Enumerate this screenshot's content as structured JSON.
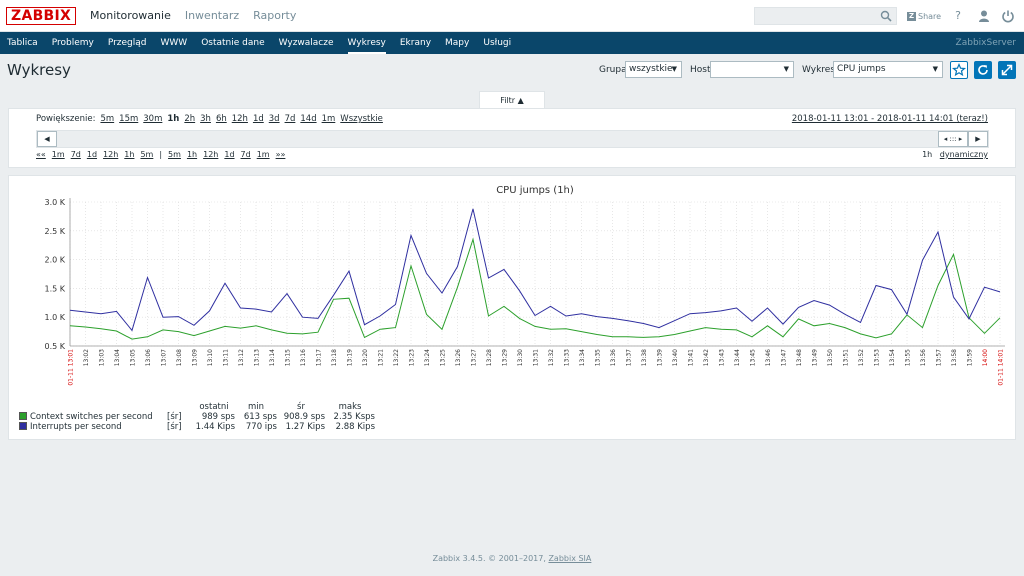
{
  "logo": "ZABBIX",
  "main_menu": [
    {
      "label": "Monitorowanie",
      "active": true
    },
    {
      "label": "Inwentarz",
      "active": false
    },
    {
      "label": "Raporty",
      "active": false
    }
  ],
  "top": {
    "share_label": "Share",
    "help_icon": "?"
  },
  "sub_menu": [
    {
      "label": "Tablica",
      "active": false
    },
    {
      "label": "Problemy",
      "active": false
    },
    {
      "label": "Przegląd",
      "active": false
    },
    {
      "label": "WWW",
      "active": false
    },
    {
      "label": "Ostatnie dane",
      "active": false
    },
    {
      "label": "Wyzwalacze",
      "active": false
    },
    {
      "label": "Wykresy",
      "active": true
    },
    {
      "label": "Ekrany",
      "active": false
    },
    {
      "label": "Mapy",
      "active": false
    },
    {
      "label": "Usługi",
      "active": false
    }
  ],
  "server_name": "ZabbixServer",
  "header": {
    "title": "Wykresy",
    "group_label": "Grupa",
    "group_value": "wszystkie",
    "host_label": "Host",
    "host_value": "",
    "graph_label": "Wykres",
    "graph_value": "CPU jumps"
  },
  "filter": {
    "label": "Filtr",
    "arrow": "▲"
  },
  "zoom": {
    "label": "Powiększenie:",
    "options": [
      "5m",
      "15m",
      "30m",
      "1h",
      "2h",
      "3h",
      "6h",
      "12h",
      "1d",
      "3d",
      "7d",
      "14d",
      "1m",
      "Wszystkie"
    ],
    "current": "1h"
  },
  "period_text": "2018-01-11 13:01 - 2018-01-11 14:01 (teraz!)",
  "navigation": {
    "left_items": [
      "««",
      "1m",
      "7d",
      "1d",
      "12h",
      "1h",
      "5m",
      "|",
      "5m",
      "1h",
      "12h",
      "1d",
      "7d",
      "1m",
      "»»"
    ],
    "right_period": "1h",
    "right_link": "dynamiczny"
  },
  "chart_data": {
    "type": "line",
    "title": "CPU jumps (1h)",
    "yticks": [
      "3.0 K",
      "2.5 K",
      "2.0 K",
      "1.5 K",
      "1.0 K",
      "0.5 K"
    ],
    "ylim": [
      500,
      3000
    ],
    "x": [
      "13:01",
      "13:02",
      "13:03",
      "13:04",
      "13:05",
      "13:06",
      "13:07",
      "13:08",
      "13:09",
      "13:10",
      "13:11",
      "13:12",
      "13:13",
      "13:14",
      "13:15",
      "13:16",
      "13:17",
      "13:18",
      "13:19",
      "13:20",
      "13:21",
      "13:22",
      "13:23",
      "13:24",
      "13:25",
      "13:26",
      "13:27",
      "13:28",
      "13:29",
      "13:30",
      "13:31",
      "13:32",
      "13:33",
      "13:34",
      "13:35",
      "13:36",
      "13:37",
      "13:38",
      "13:39",
      "13:40",
      "13:41",
      "13:42",
      "13:43",
      "13:44",
      "13:45",
      "13:46",
      "13:47",
      "13:48",
      "13:49",
      "13:50",
      "13:51",
      "13:52",
      "13:53",
      "13:54",
      "13:55",
      "13:56",
      "13:57",
      "13:58",
      "13:59",
      "14:00",
      "14:01"
    ],
    "x_edge_labels": [
      "01-11 13:01",
      "14:00",
      "01-11 14:01"
    ],
    "grid": true,
    "series": [
      {
        "name": "Context switches per second",
        "color": "#2ca02c",
        "values": [
          850,
          830,
          800,
          760,
          620,
          660,
          780,
          750,
          680,
          760,
          840,
          810,
          850,
          780,
          720,
          710,
          740,
          1310,
          1330,
          650,
          790,
          820,
          1890,
          1050,
          790,
          1520,
          2350,
          1020,
          1190,
          980,
          840,
          790,
          800,
          750,
          700,
          660,
          660,
          650,
          660,
          700,
          760,
          820,
          790,
          780,
          660,
          850,
          660,
          970,
          850,
          890,
          820,
          710,
          640,
          710,
          1040,
          820,
          1550,
          2090,
          990,
          720,
          989
        ]
      },
      {
        "name": "Interrupts per second",
        "color": "#2f2fa0",
        "values": [
          1120,
          1090,
          1060,
          1100,
          770,
          1690,
          1000,
          1010,
          860,
          1110,
          1590,
          1160,
          1140,
          1090,
          1410,
          1000,
          980,
          1380,
          1800,
          870,
          1020,
          1220,
          2420,
          1760,
          1420,
          1880,
          2880,
          1680,
          1830,
          1460,
          1030,
          1190,
          1020,
          1060,
          1010,
          980,
          940,
          890,
          820,
          940,
          1060,
          1080,
          1110,
          1160,
          930,
          1160,
          880,
          1170,
          1290,
          1210,
          1050,
          910,
          1550,
          1480,
          1050,
          1990,
          2480,
          1350,
          970,
          1520,
          1440
        ]
      }
    ],
    "legend_headers": [
      "ostatni",
      "min",
      "śr",
      "maks"
    ],
    "legend_rows": [
      {
        "name": "Context switches per second",
        "agg": "[śr]",
        "last": "989 sps",
        "min": "613 sps",
        "avg": "908.9 sps",
        "max": "2.35 Ksps",
        "color": "#2ca02c"
      },
      {
        "name": "Interrupts per second",
        "agg": "[śr]",
        "last": "1.44 Kips",
        "min": "770 ips",
        "avg": "1.27 Kips",
        "max": "2.88 Kips",
        "color": "#2f2fa0"
      }
    ]
  },
  "footer": {
    "text": "Zabbix 3.4.5. © 2001–2017,",
    "link": "Zabbix SIA"
  }
}
